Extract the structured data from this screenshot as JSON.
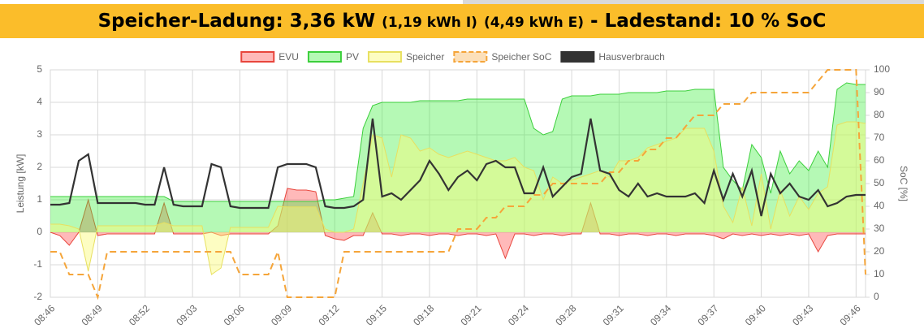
{
  "header": {
    "title_main": "Speicher-Ladung: 3,36 kW",
    "title_import": "(1,19 kWh I)",
    "title_export": "(4,49 kWh E)",
    "title_soc": "- Ladestand: 10 % SoC"
  },
  "chart_data": {
    "type": "line",
    "y_label": "Leistung [kW]",
    "y2_label": "SoC [%]",
    "categories": [
      "08:46",
      null,
      null,
      null,
      null,
      "08:49",
      null,
      null,
      null,
      null,
      "08:52",
      null,
      null,
      null,
      null,
      "09:03",
      null,
      null,
      null,
      null,
      "09:06",
      null,
      null,
      null,
      null,
      "09:09",
      null,
      null,
      null,
      null,
      "09:12",
      null,
      null,
      null,
      null,
      "09:15",
      null,
      null,
      null,
      null,
      "09:18",
      null,
      null,
      null,
      null,
      "09:21",
      null,
      null,
      null,
      null,
      "09:24",
      null,
      null,
      null,
      null,
      "09:28",
      null,
      null,
      null,
      null,
      "09:31",
      null,
      null,
      null,
      null,
      "09:34",
      null,
      null,
      null,
      null,
      "09:37",
      null,
      null,
      null,
      null,
      "09:40",
      null,
      null,
      null,
      null,
      "09:43",
      null,
      null,
      null,
      null,
      "09:46",
      null
    ],
    "ylim": [
      -2,
      5
    ],
    "yticks": [
      -2,
      -1,
      0,
      1,
      2,
      3,
      4,
      5
    ],
    "y2lim": [
      0,
      100
    ],
    "y2ticks": [
      0,
      10,
      20,
      30,
      40,
      50,
      60,
      70,
      80,
      90,
      100
    ],
    "grid": true,
    "legend": "top",
    "series": [
      {
        "name": "EVU",
        "type": "area",
        "color": "#e8453c",
        "fill": "rgba(255,80,80,0.4)",
        "values": [
          0,
          -0.1,
          -0.4,
          0,
          1.0,
          -0.1,
          -0.05,
          -0.05,
          -0.05,
          -0.05,
          -0.05,
          -0.05,
          0.9,
          -0.05,
          -0.05,
          -0.05,
          -0.05,
          0,
          -0.1,
          -0.05,
          -0.05,
          -0.05,
          -0.05,
          -0.05,
          0.2,
          1.35,
          1.3,
          1.3,
          1.25,
          -0.1,
          -0.2,
          -0.25,
          -0.1,
          -0.1,
          0.6,
          -0.05,
          -0.05,
          -0.1,
          -0.05,
          -0.05,
          -0.1,
          -0.05,
          -0.05,
          -0.1,
          -0.05,
          -0.05,
          -0.1,
          -0.05,
          -0.8,
          -0.05,
          -0.05,
          -0.1,
          -0.05,
          -0.05,
          -0.1,
          -0.05,
          -0.05,
          0.9,
          -0.05,
          -0.05,
          -0.1,
          -0.05,
          -0.05,
          -0.1,
          -0.05,
          -0.05,
          -0.1,
          -0.05,
          -0.05,
          -0.05,
          -0.1,
          -0.2,
          -0.05,
          -0.1,
          -0.05,
          -0.1,
          -0.05,
          -0.1,
          -0.05,
          -0.1,
          -0.05,
          -0.6,
          -0.1,
          -0.05,
          -0.05,
          -0.05,
          -0.05
        ]
      },
      {
        "name": "PV",
        "type": "area",
        "color": "#3ccf3c",
        "fill": "rgba(60,240,60,0.38)",
        "values": [
          1.1,
          1.1,
          1.1,
          1.1,
          1.1,
          1.1,
          1.1,
          1.1,
          1.1,
          1.1,
          1.1,
          1.1,
          1.1,
          0.95,
          0.95,
          0.95,
          0.95,
          0.95,
          0.95,
          0.95,
          0.95,
          0.95,
          0.95,
          0.95,
          0.95,
          0.95,
          0.95,
          0.95,
          0.95,
          1.0,
          1.0,
          1.05,
          1.1,
          3.2,
          3.9,
          4.0,
          4.0,
          4.0,
          4.0,
          4.05,
          4.05,
          4.05,
          4.05,
          4.05,
          4.1,
          4.1,
          4.1,
          4.1,
          4.1,
          4.1,
          4.1,
          3.2,
          3.0,
          3.1,
          4.1,
          4.2,
          4.2,
          4.2,
          4.25,
          4.25,
          4.25,
          4.3,
          4.3,
          4.3,
          4.3,
          4.35,
          4.35,
          4.35,
          4.4,
          4.4,
          4.4,
          2.0,
          1.6,
          1.3,
          2.7,
          2.3,
          1.2,
          2.5,
          1.8,
          2.2,
          1.9,
          2.5,
          2.0,
          4.4,
          4.6,
          4.55,
          4.55
        ]
      },
      {
        "name": "Speicher",
        "type": "area",
        "color": "#e8e060",
        "fill": "rgba(250,250,120,0.45)",
        "values": [
          0.25,
          0.25,
          0.2,
          0.1,
          -1.2,
          0.2,
          0.2,
          0.2,
          0.2,
          0.2,
          0.2,
          0.2,
          0.3,
          0.2,
          0.2,
          0.2,
          0.2,
          -1.3,
          -1.1,
          0.15,
          0.15,
          0.15,
          0.15,
          0.15,
          0.8,
          0.78,
          0.78,
          0.78,
          0.78,
          0.1,
          0,
          0,
          0.1,
          1.5,
          3.0,
          2.9,
          1.7,
          3.0,
          2.9,
          2.5,
          2.6,
          2.4,
          2.3,
          2.4,
          2.5,
          2.4,
          2.3,
          2.2,
          2.2,
          2.3,
          2.0,
          1.9,
          1.0,
          1.7,
          1.5,
          1.6,
          1.7,
          1.8,
          1.9,
          1.7,
          2.2,
          2.2,
          2.3,
          2.6,
          2.7,
          2.8,
          2.9,
          3.2,
          3.2,
          3.2,
          2.5,
          0.8,
          0.3,
          1.4,
          0.2,
          1.8,
          0.1,
          1.3,
          0.5,
          1.1,
          0.7,
          1.2,
          1.4,
          3.3,
          3.4,
          3.4,
          3.35
        ]
      },
      {
        "name": "Speicher SoC",
        "type": "line",
        "axis": "y2",
        "dashed": true,
        "color": "#f5a53a",
        "values": [
          20,
          20,
          10,
          10,
          10,
          0,
          20,
          20,
          20,
          20,
          20,
          20,
          20,
          20,
          20,
          20,
          20,
          20,
          20,
          20,
          10,
          10,
          10,
          10,
          20,
          0,
          0,
          0,
          0,
          0,
          0,
          20,
          20,
          20,
          20,
          20,
          20,
          20,
          20,
          20,
          20,
          20,
          20,
          30,
          30,
          30,
          35,
          35,
          40,
          40,
          40,
          45,
          45,
          50,
          50,
          50,
          50,
          50,
          50,
          55,
          55,
          60,
          60,
          65,
          65,
          70,
          70,
          75,
          80,
          80,
          80,
          85,
          85,
          85,
          90,
          90,
          90,
          90,
          90,
          90,
          90,
          95,
          100,
          100,
          100,
          100,
          10
        ]
      },
      {
        "name": "Hausverbrauch",
        "type": "line",
        "color": "#333333",
        "values": [
          0.85,
          0.85,
          0.9,
          2.2,
          2.4,
          0.9,
          0.9,
          0.9,
          0.9,
          0.9,
          0.85,
          0.85,
          2.0,
          0.85,
          0.8,
          0.8,
          0.8,
          2.1,
          2.0,
          0.8,
          0.75,
          0.75,
          0.75,
          0.75,
          2.0,
          2.1,
          2.1,
          2.1,
          2.0,
          0.8,
          0.75,
          0.75,
          0.8,
          1.0,
          3.5,
          1.1,
          1.2,
          1.0,
          1.3,
          1.6,
          2.2,
          1.8,
          1.3,
          1.7,
          1.9,
          1.6,
          2.1,
          2.2,
          2.0,
          2.0,
          1.2,
          1.2,
          2.0,
          1.1,
          1.4,
          1.7,
          1.8,
          3.5,
          1.9,
          1.8,
          1.3,
          1.1,
          1.5,
          1.1,
          1.2,
          1.1,
          1.1,
          1.1,
          1.2,
          0.9,
          1.9,
          1.0,
          1.8,
          1.1,
          1.9,
          0.5,
          1.8,
          1.2,
          1.5,
          1.1,
          1.0,
          1.3,
          0.8,
          0.9,
          1.1,
          1.15,
          1.15
        ]
      }
    ]
  }
}
